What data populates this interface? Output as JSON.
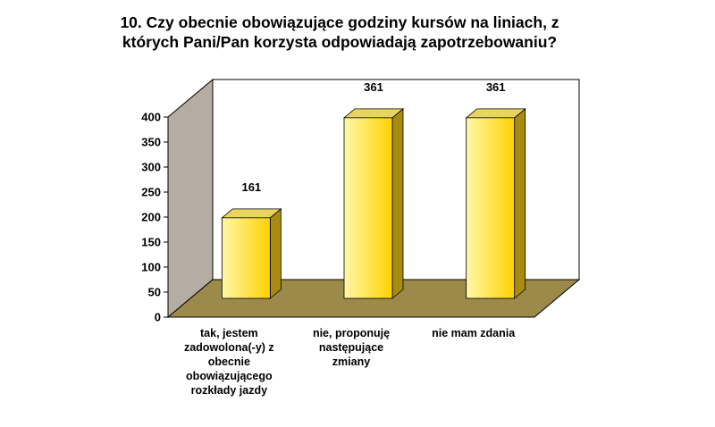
{
  "chart_data": {
    "type": "bar",
    "title_lines": [
      "10. Czy obecnie obowiązujące godziny kursów na liniach, z",
      "których Pani/Pan korzysta odpowiadają zapotrzebowaniu?"
    ],
    "categories": [
      [
        "tak, jestem",
        "zadowolona(-y) z",
        "obecnie",
        "obowiązującego",
        "rozkłady jazdy"
      ],
      [
        "nie, proponuję",
        "następujące",
        "zmiany"
      ],
      [
        "nie mam zdania"
      ]
    ],
    "values": [
      161,
      361,
      361
    ],
    "data_labels": [
      "161",
      "361",
      "361"
    ],
    "ylim": [
      0,
      400
    ],
    "yticks": [
      0,
      50,
      100,
      150,
      200,
      250,
      300,
      350,
      400
    ],
    "style": "3d-column",
    "grid": false,
    "colors": {
      "bar_front": "#ffd200",
      "bar_front_light": "#fff7a8",
      "bar_side": "#a88c10",
      "bar_top": "#e8d460",
      "back_wall": "#ffffff",
      "side_wall": "#b5ada4",
      "floor": "#9c8a4a"
    }
  }
}
